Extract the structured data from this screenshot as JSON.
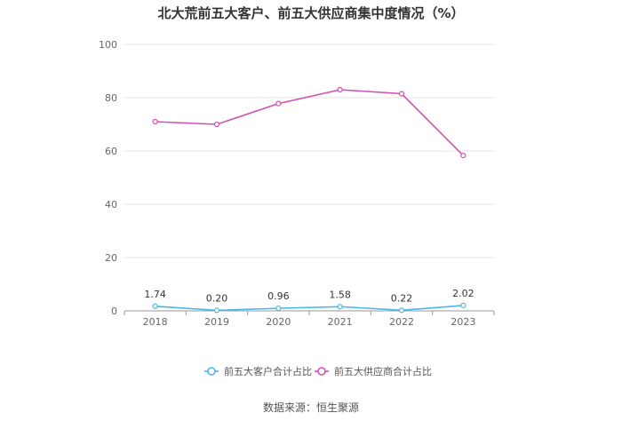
{
  "title": "北大荒前五大客户、前五大供应商集中度情况（%）",
  "source": "数据来源：恒生聚源",
  "chart_data": {
    "type": "line",
    "categories": [
      "2018",
      "2019",
      "2020",
      "2021",
      "2022",
      "2023"
    ],
    "ylim": [
      0,
      100
    ],
    "yticks": [
      0,
      20,
      40,
      60,
      80,
      100
    ],
    "grid": true,
    "legend_position": "bottom",
    "series": [
      {
        "name": "前五大客户合计占比",
        "values": [
          1.74,
          0.2,
          0.96,
          1.58,
          0.22,
          2.02
        ],
        "labels": [
          "1.74",
          "0.20",
          "0.96",
          "1.58",
          "0.22",
          "2.02"
        ],
        "color": "#4db6e8"
      },
      {
        "name": "前五大供应商合计占比",
        "values": [
          71.0,
          70.0,
          77.8,
          83.0,
          81.5,
          58.3
        ],
        "color": "#d44fb4"
      }
    ]
  }
}
